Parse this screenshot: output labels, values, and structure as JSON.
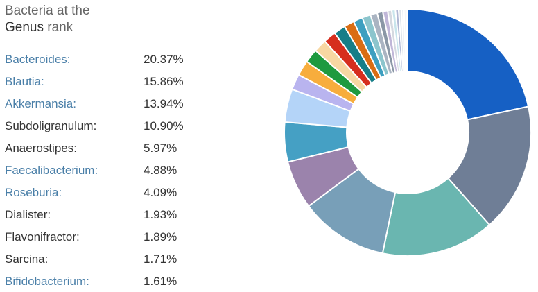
{
  "title": {
    "line1": "Bacteria at the",
    "rank_name": "Genus",
    "rank_suffix": " rank"
  },
  "genera": [
    {
      "name": "Bacteroides:",
      "percent": "20.37%",
      "link": true
    },
    {
      "name": "Blautia:",
      "percent": "15.86%",
      "link": true
    },
    {
      "name": "Akkermansia:",
      "percent": "13.94%",
      "link": true
    },
    {
      "name": "Subdoligranulum:",
      "percent": "10.90%",
      "link": false
    },
    {
      "name": "Anaerostipes:",
      "percent": "5.97%",
      "link": false
    },
    {
      "name": "Faecalibacterium:",
      "percent": "4.88%",
      "link": true
    },
    {
      "name": "Roseburia:",
      "percent": "4.09%",
      "link": true
    },
    {
      "name": "Dialister:",
      "percent": "1.93%",
      "link": false
    },
    {
      "name": "Flavonifractor:",
      "percent": "1.89%",
      "link": false
    },
    {
      "name": "Sarcina:",
      "percent": "1.71%",
      "link": false
    },
    {
      "name": "Bifidobacterium:",
      "percent": "1.61%",
      "link": true
    }
  ],
  "chart_data": {
    "type": "pie",
    "donut": true,
    "categories": [
      "Bacteroides",
      "Blautia",
      "Akkermansia",
      "Subdoligranulum",
      "Anaerostipes",
      "Faecalibacterium",
      "Roseburia",
      "Dialister",
      "Flavonifractor",
      "Sarcina",
      "Bifidobacterium",
      "",
      "",
      "",
      "",
      "",
      "",
      "",
      "",
      "",
      "",
      "",
      "",
      "",
      "",
      ""
    ],
    "values": [
      20.37,
      15.86,
      13.94,
      10.9,
      5.97,
      4.88,
      4.09,
      1.93,
      1.89,
      1.71,
      1.61,
      1.55,
      1.45,
      1.25,
      1.15,
      1.05,
      0.85,
      0.7,
      0.6,
      0.5,
      0.45,
      0.4,
      0.35,
      0.3,
      0.25,
      0.2
    ],
    "colors": [
      "#1660c4",
      "#6f7e96",
      "#6ab6b0",
      "#789fb8",
      "#9b83ac",
      "#45a0c4",
      "#b4d4f8",
      "#b9b4ef",
      "#f7ad3d",
      "#1e9a3f",
      "#f7d7a2",
      "#d62e1e",
      "#167e88",
      "#d96d14",
      "#3d9fc0",
      "#8cc5cd",
      "#aab4c2",
      "#8a97a6",
      "#c0b7d8",
      "#d5d9e0",
      "#c9e5ec",
      "#b0b8d4",
      "#dde3ea",
      "#e7ecf2",
      "#eef1f5",
      "#f3f5f8"
    ],
    "legend": "left"
  }
}
